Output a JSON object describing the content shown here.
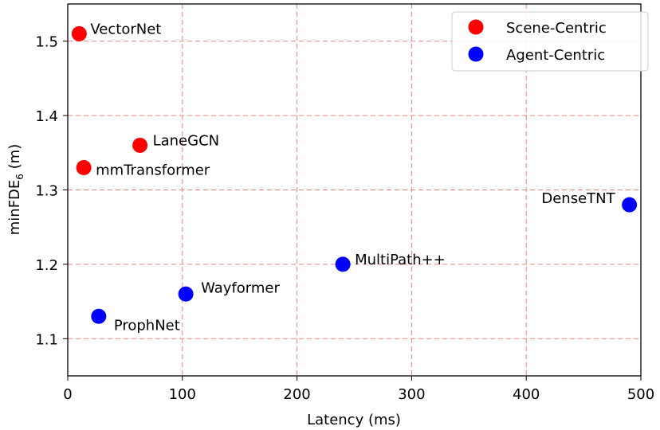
{
  "chart_data": {
    "type": "scatter",
    "title": "",
    "xlabel": "Latency (ms)",
    "ylabel_main": "minFDE",
    "ylabel_sub": "6",
    "ylabel_unit": " (m)",
    "xlim": [
      0,
      500
    ],
    "ylim": [
      1.05,
      1.55
    ],
    "xticks": [
      "0",
      "100",
      "200",
      "300",
      "400",
      "500"
    ],
    "yticks": [
      "1.1",
      "1.2",
      "1.3",
      "1.4",
      "1.5"
    ],
    "grid": true,
    "grid_color": "#f08080",
    "legend_position": "top-right",
    "series": [
      {
        "name": "Scene-Centric",
        "color": "#ff0000",
        "points": [
          {
            "label": "VectorNet",
            "x": 10,
            "y": 1.51
          },
          {
            "label": "LaneGCN",
            "x": 63,
            "y": 1.36
          },
          {
            "label": "mmTransformer",
            "x": 14,
            "y": 1.33
          }
        ]
      },
      {
        "name": "Agent-Centric",
        "color": "#0000ff",
        "points": [
          {
            "label": "DenseTNT",
            "x": 490,
            "y": 1.28
          },
          {
            "label": "MultiPath++",
            "x": 240,
            "y": 1.2
          },
          {
            "label": "Wayformer",
            "x": 103,
            "y": 1.16
          },
          {
            "label": "ProphNet",
            "x": 27,
            "y": 1.13
          }
        ]
      }
    ]
  }
}
